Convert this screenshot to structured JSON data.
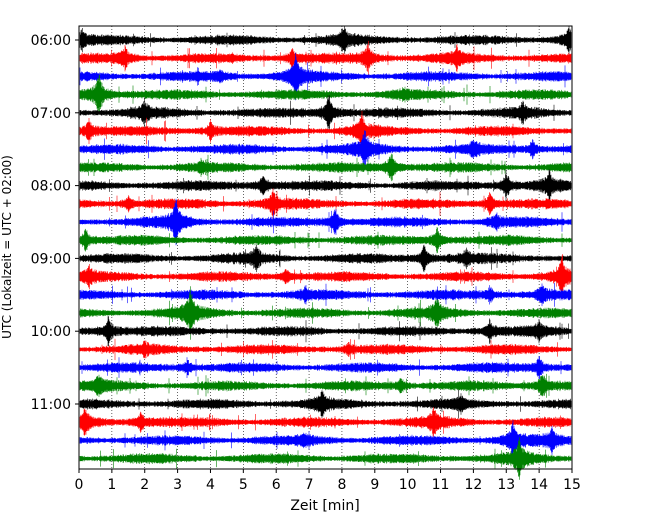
{
  "chart_data": {
    "type": "line",
    "title": "",
    "xlabel": "Zeit  [min]",
    "ylabel": "UTC (Lokalzeit = UTC + 02:00)",
    "xlim": [
      0,
      15
    ],
    "x_ticks": [
      "0",
      "1",
      "2",
      "3",
      "4",
      "5",
      "6",
      "7",
      "8",
      "9",
      "10",
      "11",
      "12",
      "13",
      "14",
      "15"
    ],
    "y_tick_labels": [
      "06:00",
      "07:00",
      "08:00",
      "09:00",
      "10:00",
      "11:00"
    ],
    "grid": "vertical dotted lines at each minute",
    "colors": [
      "#000000",
      "#ff0000",
      "#0000ff",
      "#008000"
    ],
    "traces": [
      {
        "start": "06:00",
        "color": "#000000",
        "events": [
          {
            "t": 0.1,
            "amp": 0.5
          },
          {
            "t": 8.05,
            "amp": 0.7
          },
          {
            "t": 14.9,
            "amp": 0.7
          }
        ]
      },
      {
        "start": "06:15",
        "color": "#ff0000",
        "events": [
          {
            "t": 1.4,
            "amp": 0.6
          },
          {
            "t": 6.5,
            "amp": 0.5
          },
          {
            "t": 8.8,
            "amp": 0.8
          },
          {
            "t": 11.5,
            "amp": 0.5
          }
        ]
      },
      {
        "start": "06:30",
        "color": "#0000ff",
        "events": [
          {
            "t": 4.3,
            "amp": 0.3
          },
          {
            "t": 6.6,
            "amp": 1.2
          }
        ]
      },
      {
        "start": "06:45",
        "color": "#008000",
        "events": [
          {
            "t": 0.6,
            "amp": 1.4
          },
          {
            "t": 9.9,
            "amp": 0.3
          }
        ]
      },
      {
        "start": "07:00",
        "color": "#000000",
        "events": [
          {
            "t": 2.0,
            "amp": 0.6
          },
          {
            "t": 7.6,
            "amp": 1.1
          },
          {
            "t": 13.5,
            "amp": 0.5
          }
        ]
      },
      {
        "start": "07:15",
        "color": "#ff0000",
        "events": [
          {
            "t": 0.3,
            "amp": 0.6
          },
          {
            "t": 4.0,
            "amp": 0.5
          },
          {
            "t": 8.6,
            "amp": 0.9
          }
        ]
      },
      {
        "start": "07:30",
        "color": "#0000ff",
        "events": [
          {
            "t": 8.7,
            "amp": 1.0
          },
          {
            "t": 12.0,
            "amp": 0.4
          },
          {
            "t": 13.8,
            "amp": 0.5
          }
        ]
      },
      {
        "start": "07:45",
        "color": "#008000",
        "events": [
          {
            "t": 3.7,
            "amp": 0.3
          },
          {
            "t": 9.5,
            "amp": 0.9
          }
        ]
      },
      {
        "start": "08:00",
        "color": "#000000",
        "events": [
          {
            "t": 5.6,
            "amp": 0.7
          },
          {
            "t": 13.0,
            "amp": 0.8
          },
          {
            "t": 14.3,
            "amp": 0.7
          }
        ]
      },
      {
        "start": "08:15",
        "color": "#ff0000",
        "events": [
          {
            "t": 1.5,
            "amp": 0.4
          },
          {
            "t": 5.9,
            "amp": 0.7
          },
          {
            "t": 12.5,
            "amp": 0.6
          }
        ]
      },
      {
        "start": "08:30",
        "color": "#0000ff",
        "events": [
          {
            "t": 2.95,
            "amp": 1.2
          },
          {
            "t": 7.8,
            "amp": 0.7
          },
          {
            "t": 12.7,
            "amp": 0.4
          }
        ]
      },
      {
        "start": "08:45",
        "color": "#008000",
        "events": [
          {
            "t": 0.2,
            "amp": 0.6
          },
          {
            "t": 10.9,
            "amp": 0.7
          }
        ]
      },
      {
        "start": "09:00",
        "color": "#000000",
        "events": [
          {
            "t": 5.4,
            "amp": 0.6
          },
          {
            "t": 10.5,
            "amp": 0.7
          },
          {
            "t": 11.8,
            "amp": 0.4
          }
        ]
      },
      {
        "start": "09:15",
        "color": "#ff0000",
        "events": [
          {
            "t": 0.3,
            "amp": 0.5
          },
          {
            "t": 6.3,
            "amp": 0.4
          },
          {
            "t": 14.7,
            "amp": 1.2
          }
        ]
      },
      {
        "start": "09:30",
        "color": "#0000ff",
        "events": [
          {
            "t": 6.9,
            "amp": 0.3
          },
          {
            "t": 12.5,
            "amp": 0.4
          },
          {
            "t": 14.1,
            "amp": 0.5
          }
        ]
      },
      {
        "start": "09:45",
        "color": "#008000",
        "events": [
          {
            "t": 3.4,
            "amp": 1.3
          },
          {
            "t": 10.9,
            "amp": 0.8
          }
        ]
      },
      {
        "start": "10:00",
        "color": "#000000",
        "events": [
          {
            "t": 0.9,
            "amp": 0.9
          },
          {
            "t": 12.5,
            "amp": 0.6
          },
          {
            "t": 14.0,
            "amp": 0.4
          }
        ]
      },
      {
        "start": "10:15",
        "color": "#ff0000",
        "events": [
          {
            "t": 2.0,
            "amp": 0.3
          },
          {
            "t": 8.2,
            "amp": 0.3
          }
        ]
      },
      {
        "start": "10:30",
        "color": "#0000ff",
        "events": [
          {
            "t": 3.3,
            "amp": 0.4
          },
          {
            "t": 14.0,
            "amp": 0.6
          }
        ]
      },
      {
        "start": "10:45",
        "color": "#008000",
        "events": [
          {
            "t": 0.6,
            "amp": 0.5
          },
          {
            "t": 9.8,
            "amp": 0.4
          },
          {
            "t": 14.1,
            "amp": 0.8
          }
        ]
      },
      {
        "start": "11:00",
        "color": "#000000",
        "events": [
          {
            "t": 7.4,
            "amp": 0.7
          },
          {
            "t": 11.6,
            "amp": 0.4
          }
        ]
      },
      {
        "start": "11:15",
        "color": "#ff0000",
        "events": [
          {
            "t": 0.2,
            "amp": 0.7
          },
          {
            "t": 1.9,
            "amp": 0.6
          },
          {
            "t": 10.8,
            "amp": 0.7
          }
        ]
      },
      {
        "start": "11:30",
        "color": "#0000ff",
        "events": [
          {
            "t": 6.9,
            "amp": 0.3
          },
          {
            "t": 13.2,
            "amp": 0.9
          },
          {
            "t": 14.4,
            "amp": 0.7
          }
        ]
      },
      {
        "start": "11:45",
        "color": "#008000",
        "events": [
          {
            "t": 13.4,
            "amp": 1.0
          }
        ]
      }
    ]
  }
}
